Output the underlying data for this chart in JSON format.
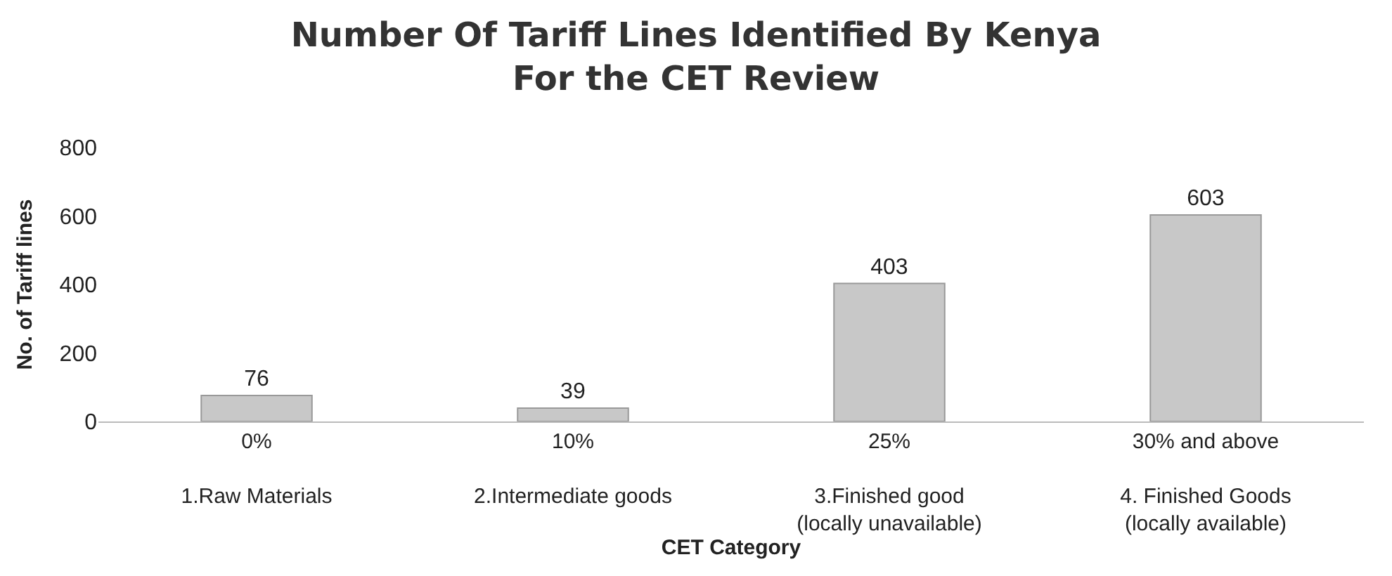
{
  "chart_data": {
    "type": "bar",
    "title": "Number Of Tariff Lines Identified By Kenya\nFor the CET Review",
    "xlabel": "CET Category",
    "ylabel": "No. of Tariff lines",
    "categories": [
      "0%\n\n1.Raw Materials",
      "10%\n\n2.Intermediate goods",
      "25%\n\n3.Finished good\n(locally unavailable)",
      "30% and above\n\n4. Finished Goods\n(locally available)"
    ],
    "values": [
      76,
      39,
      403,
      603
    ],
    "color": "#c8c8c8",
    "ylim": [
      0,
      800
    ],
    "yticks": [
      0,
      200,
      400,
      600,
      800
    ],
    "data_labels": true
  }
}
